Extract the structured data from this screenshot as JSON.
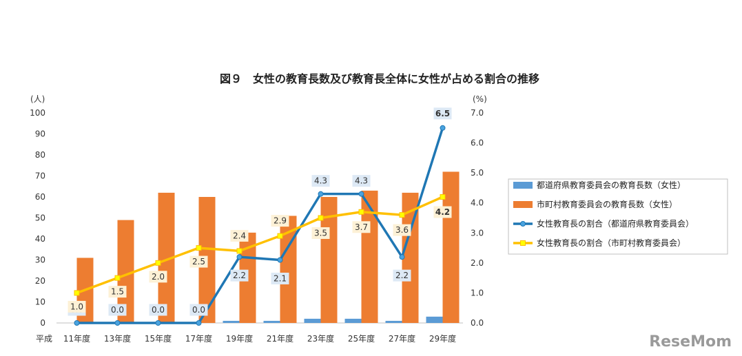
{
  "chart_data": {
    "type": "bar",
    "title": "図９　女性の教育長数及び教育長全体に女性が占める割合の推移",
    "y_left_unit": "(人)",
    "y_right_unit": "(%)",
    "x_prefix": "平成",
    "categories": [
      "11年度",
      "13年度",
      "15年度",
      "17年度",
      "19年度",
      "21年度",
      "23年度",
      "25年度",
      "27年度",
      "29年度"
    ],
    "ylim_left": [
      0,
      100
    ],
    "ylim_right": [
      0,
      7
    ],
    "left_ticks": [
      "0",
      "10",
      "20",
      "30",
      "40",
      "50",
      "60",
      "70",
      "80",
      "90",
      "100"
    ],
    "right_ticks": [
      "0.0",
      "1.0",
      "2.0",
      "3.0",
      "4.0",
      "5.0",
      "6.0",
      "7.0"
    ],
    "grid": false,
    "legend_position": "right",
    "series": [
      {
        "name": "都道府県教育委員会の教育長数（女性）",
        "type": "bar",
        "axis": "left",
        "color": "#5b9bd5",
        "values": [
          0,
          0,
          0,
          0,
          1,
          1,
          2,
          2,
          1,
          3
        ]
      },
      {
        "name": "市町村教育委員会の教育長数（女性）",
        "type": "bar",
        "axis": "left",
        "color": "#ed7d31",
        "values": [
          31,
          49,
          62,
          60,
          43,
          51,
          60,
          63,
          62,
          72
        ]
      },
      {
        "name": "女性教育長の割合（都道府県教育委員会）",
        "type": "line",
        "axis": "right",
        "color": "#1f77b4",
        "values": [
          0.0,
          0.0,
          0.0,
          0.0,
          2.2,
          2.1,
          4.3,
          4.3,
          2.2,
          6.5
        ],
        "labels": [
          "0.0",
          "0.0",
          "0.0",
          "0.0",
          "2.2",
          "2.1",
          "4.3",
          "4.3",
          "2.2",
          "6.5"
        ]
      },
      {
        "name": "女性教育長の割合（市町村教育委員会）",
        "type": "line",
        "axis": "right",
        "color": "#ffc000",
        "values": [
          1.0,
          1.5,
          2.0,
          2.5,
          2.4,
          2.9,
          3.5,
          3.7,
          3.6,
          4.2
        ],
        "labels": [
          "1.0",
          "1.5",
          "2.0",
          "2.5",
          "2.4",
          "2.9",
          "3.5",
          "3.7",
          "3.6",
          "4.2"
        ]
      }
    ]
  },
  "logo": "ReseMom"
}
